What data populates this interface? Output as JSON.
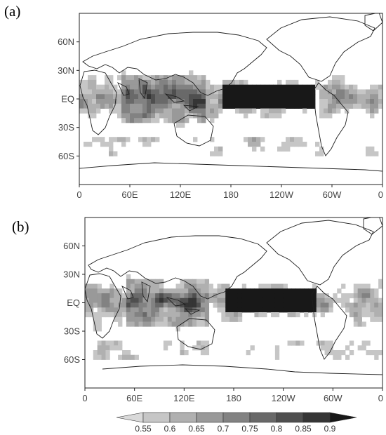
{
  "figure": {
    "panels": [
      {
        "label": "(a)",
        "id": "a"
      },
      {
        "label": "(b)",
        "id": "b"
      }
    ],
    "lat_ticks": [
      "60N",
      "30N",
      "EQ",
      "30S",
      "60S"
    ],
    "lon_ticks": [
      "0",
      "60E",
      "120E",
      "180",
      "120W",
      "60W",
      "0"
    ],
    "colorbar": {
      "ticks": [
        "0.55",
        "0.6",
        "0.65",
        "0.7",
        "0.75",
        "0.8",
        "0.85",
        "0.9"
      ],
      "colors": [
        "#d9d9d9",
        "#c6c6c6",
        "#b0b0b0",
        "#999999",
        "#828282",
        "#696969",
        "#4f4f4f",
        "#353535",
        "#181818"
      ],
      "extend": "both"
    }
  },
  "chart_data": {
    "type": "heatmap",
    "lon_range": [
      0,
      360
    ],
    "lat_range": [
      -90,
      90
    ],
    "value_range": [
      0.55,
      0.9
    ],
    "panels": [
      "(a)",
      "(b)"
    ]
  }
}
